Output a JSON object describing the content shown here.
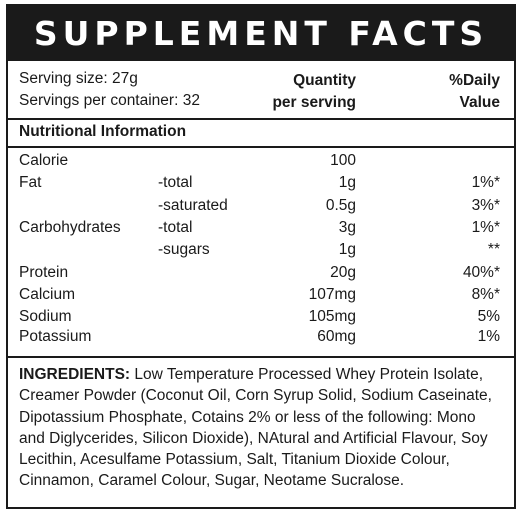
{
  "title": "SUPPLEMENT FACTS",
  "serving": {
    "size": "Serving size: 27g",
    "per_container": "Servings per container: 32",
    "quantity_header_1": "Quantity",
    "quantity_header_2": "per serving",
    "dv_header_1": "%Daily",
    "dv_header_2": "Value"
  },
  "section_title": "Nutritional Information",
  "rows": [
    {
      "name": "Calorie",
      "sub": "",
      "amount": "100",
      "dv": ""
    },
    {
      "name": "Fat",
      "sub": "-total",
      "amount": "1g",
      "dv": "1%*"
    },
    {
      "name": "",
      "sub": "-saturated",
      "amount": "0.5g",
      "dv": "3%*"
    },
    {
      "name": "Carbohydrates",
      "sub": "-total",
      "amount": "3g",
      "dv": "1%*"
    },
    {
      "name": "",
      "sub": "-sugars",
      "amount": "1g",
      "dv": "**"
    },
    {
      "name": "Protein",
      "sub": "",
      "amount": "20g",
      "dv": "40%*"
    },
    {
      "name": "Calcium",
      "sub": "",
      "amount": "107mg",
      "dv": "8%*"
    },
    {
      "name": "Sodium",
      "sub": "",
      "amount": "105mg",
      "dv": "5%"
    },
    {
      "name": "Potassium",
      "sub": "",
      "amount": "60mg",
      "dv": "1%"
    }
  ],
  "ingredients": {
    "label": "INGREDIENTS:",
    "text": " Low Temperature Processed Whey Protein Isolate, Creamer Powder (Coconut Oil, Corn Syrup Solid, Sodium Caseinate, Dipotassium Phosphate, Cotains 2% or less of the following: Mono and Diglycerides, Silicon Dioxide), NAtural and Artificial Flavour, Soy Lecithin, Acesulfame Potassium, Salt, Titanium Dioxide Colour, Cinnamon, Caramel Colour, Sugar, Neotame Sucralose."
  }
}
